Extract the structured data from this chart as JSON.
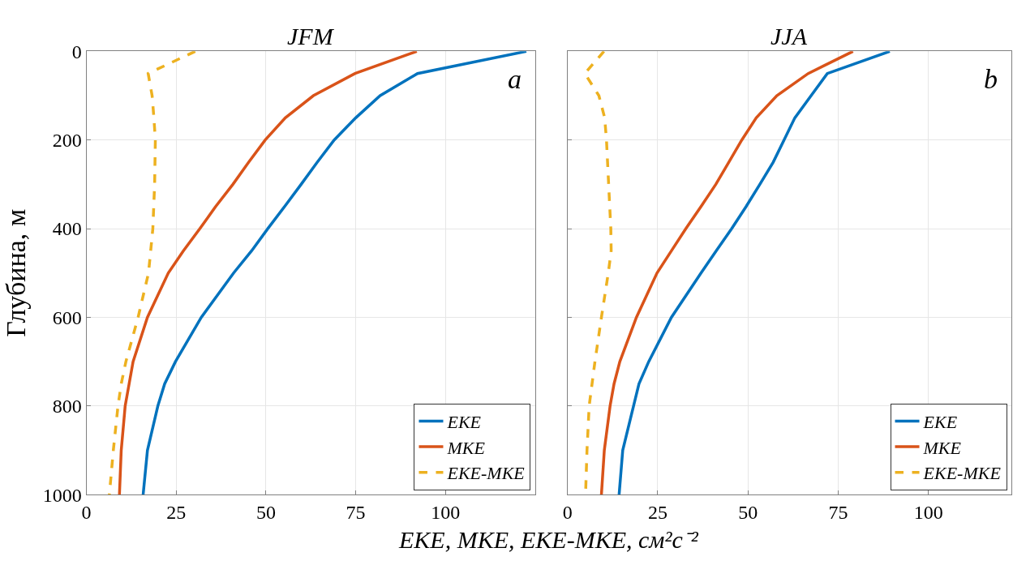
{
  "chart_data": [
    {
      "type": "line",
      "title": "JFM",
      "ylabel": "Глубина, м",
      "xlabel": "EKE, MKE, EKE-MKE, см²с⁻²",
      "orientation": "horizontal",
      "annotations": [
        "a"
      ],
      "xlim": [
        0,
        125
      ],
      "xticks": [
        0,
        25,
        50,
        75,
        100
      ],
      "ylim": [
        1000,
        0
      ],
      "yticks": [
        0,
        200,
        400,
        600,
        800,
        1000
      ],
      "grid": true,
      "legend": "bottom right",
      "series": [
        {
          "name": "EKE",
          "color": "#0072bd",
          "x": [
            0,
            50,
            100,
            150,
            200,
            250,
            300,
            350,
            400,
            450,
            500,
            600,
            700,
            750,
            800,
            900,
            1000
          ],
          "values": [
            122.5,
            92.2,
            81.8,
            75,
            69,
            64.3,
            59.8,
            55.2,
            50.5,
            46,
            41,
            32,
            24.8,
            21.8,
            19.9,
            17,
            15.8
          ]
        },
        {
          "name": "MKE",
          "color": "#d95319",
          "x": [
            0,
            50,
            100,
            150,
            200,
            250,
            300,
            350,
            400,
            450,
            500,
            600,
            700,
            750,
            800,
            900,
            1000
          ],
          "values": [
            92,
            74.8,
            63.2,
            55.4,
            49.8,
            45.2,
            40.8,
            36,
            31.6,
            27,
            22.8,
            17,
            13,
            11.9,
            10.8,
            9.7,
            9.2
          ]
        },
        {
          "name": "EKE-MKE",
          "color": "#edb120",
          "line_style": "dashed",
          "x": [
            0,
            50,
            100,
            150,
            200,
            300,
            400,
            500,
            600,
            700,
            750,
            800,
            900,
            1000
          ],
          "values": [
            30.3,
            17.2,
            18.3,
            18.8,
            19.2,
            19,
            18.5,
            17.3,
            14.4,
            11,
            9.7,
            8.8,
            7.5,
            6.4
          ]
        }
      ]
    },
    {
      "type": "line",
      "title": "JJA",
      "orientation": "horizontal",
      "annotations": [
        "b"
      ],
      "xlim": [
        0,
        123
      ],
      "xticks": [
        0,
        25,
        50,
        75,
        100
      ],
      "ylim": [
        1000,
        0
      ],
      "tick_labels": "x",
      "grid": true,
      "legend": "bottom right",
      "series": [
        {
          "name": "EKE",
          "color": "#0072bd",
          "x": [
            0,
            50,
            100,
            150,
            200,
            250,
            300,
            350,
            400,
            450,
            500,
            600,
            700,
            750,
            800,
            900,
            1000
          ],
          "values": [
            89.3,
            72,
            67.5,
            63,
            60,
            57,
            53.3,
            49.5,
            45.5,
            41.2,
            37,
            28.8,
            22.5,
            19.8,
            18.3,
            15.3,
            14.3
          ]
        },
        {
          "name": "MKE",
          "color": "#d95319",
          "x": [
            0,
            50,
            100,
            150,
            200,
            250,
            300,
            350,
            400,
            450,
            500,
            600,
            700,
            750,
            800,
            900,
            1000
          ],
          "values": [
            79.1,
            66.7,
            58,
            52.3,
            48.3,
            44.7,
            41.1,
            37,
            32.8,
            28.8,
            24.8,
            19.1,
            14.5,
            12.9,
            11.8,
            10.2,
            9.4
          ]
        },
        {
          "name": "EKE-MKE",
          "color": "#edb120",
          "line_style": "dashed",
          "x": [
            0,
            50,
            100,
            150,
            200,
            300,
            400,
            450,
            500,
            600,
            700,
            800,
            900,
            1000
          ],
          "values": [
            10.1,
            4.8,
            8.7,
            10.3,
            10.8,
            11.4,
            12,
            12.1,
            11.3,
            9.4,
            7.6,
            6,
            5.4,
            5
          ]
        }
      ]
    }
  ]
}
